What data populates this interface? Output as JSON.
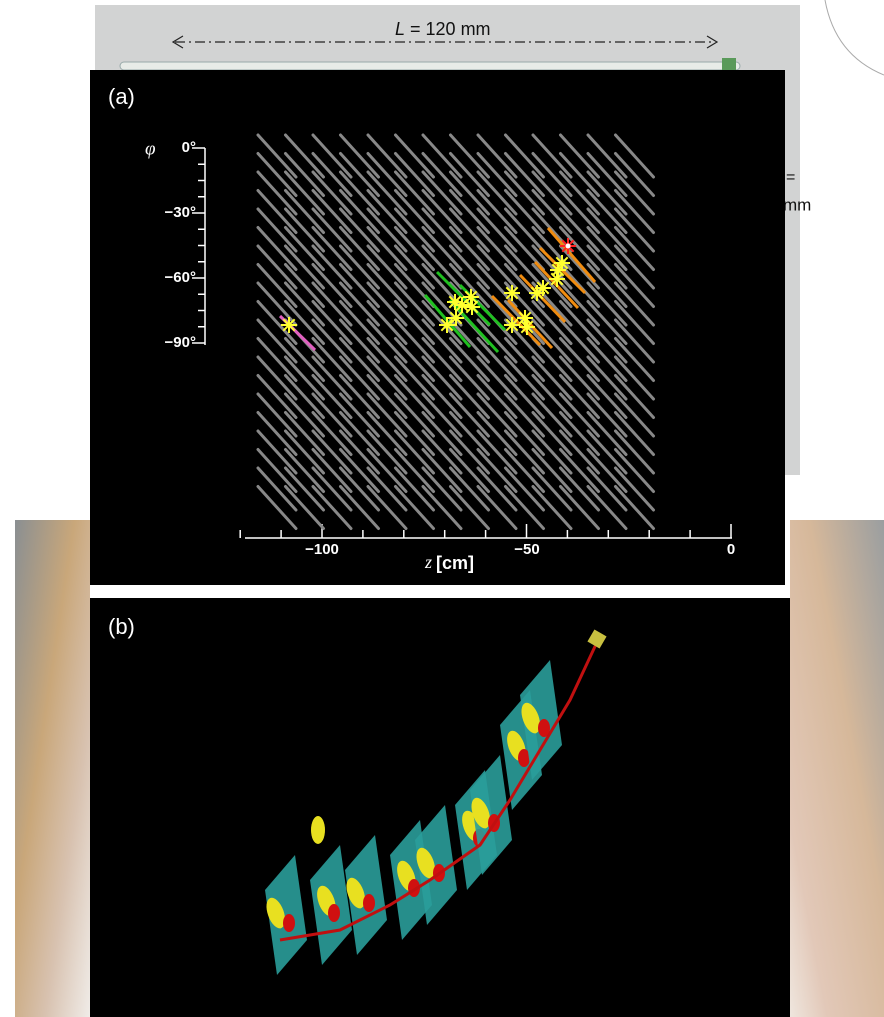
{
  "photo": {
    "length_label": {
      "symbol": "L",
      "rest": " = 120 mm"
    },
    "side_label_1": "=",
    "side_label_2": "mm"
  },
  "panel_a": {
    "label": "(a)",
    "y_axis": {
      "symbol": "φ",
      "ticks": [
        "0°",
        "−30°",
        "−60°",
        "−90°"
      ]
    },
    "x_axis": {
      "symbol": "z",
      "unit": "[cm]",
      "ticks": [
        "−100",
        "−50",
        "0"
      ]
    }
  },
  "panel_b": {
    "label": "(b)"
  }
}
